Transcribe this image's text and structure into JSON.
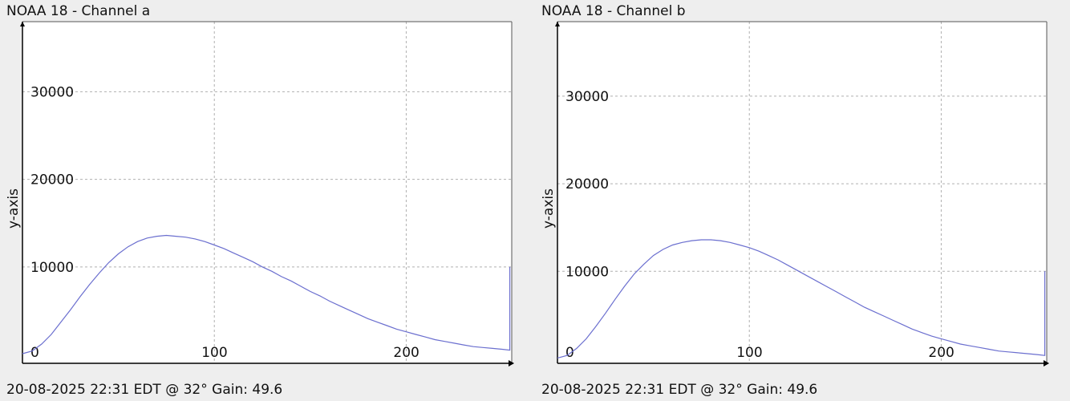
{
  "panels": [
    {
      "title": "NOAA 18 - Channel a",
      "footer": "20-08-2025 22:31 EDT @ 32° Gain: 49.6"
    },
    {
      "title": "NOAA 18 - Channel b",
      "footer": "20-08-2025 22:31 EDT @ 32° Gain: 49.6"
    }
  ],
  "chart_data": [
    {
      "type": "line",
      "title": "NOAA 18 - Channel a",
      "xlabel": "",
      "ylabel": "y-axis",
      "xlim": [
        0,
        255
      ],
      "ylim": [
        -1000,
        38000
      ],
      "xticks": [
        0,
        100,
        200
      ],
      "yticks": [
        10000,
        20000,
        30000
      ],
      "xtick_labels": [
        "0",
        "100",
        "200"
      ],
      "ytick_labels": [
        "10000",
        "20000",
        "30000"
      ],
      "grid": true,
      "line_color": "#6b6fcf",
      "x": [
        0,
        5,
        10,
        15,
        20,
        25,
        30,
        35,
        40,
        45,
        50,
        55,
        60,
        65,
        70,
        75,
        80,
        85,
        90,
        95,
        100,
        105,
        110,
        115,
        120,
        125,
        130,
        135,
        140,
        145,
        150,
        155,
        160,
        165,
        170,
        175,
        180,
        185,
        190,
        195,
        200,
        205,
        210,
        215,
        220,
        225,
        230,
        235,
        240,
        245,
        250,
        254,
        254,
        254
      ],
      "y": [
        100,
        400,
        1200,
        2300,
        3700,
        5100,
        6600,
        8000,
        9300,
        10500,
        11500,
        12300,
        12900,
        13300,
        13500,
        13600,
        13500,
        13400,
        13200,
        12900,
        12500,
        12100,
        11600,
        11100,
        10600,
        10000,
        9500,
        8900,
        8400,
        7800,
        7200,
        6700,
        6100,
        5600,
        5100,
        4600,
        4100,
        3700,
        3300,
        2900,
        2600,
        2300,
        2000,
        1700,
        1500,
        1300,
        1100,
        900,
        800,
        700,
        600,
        500,
        10000,
        500
      ]
    },
    {
      "type": "line",
      "title": "NOAA 18 - Channel b",
      "xlabel": "",
      "ylabel": "y-axis",
      "xlim": [
        0,
        255
      ],
      "ylim": [
        -500,
        38500
      ],
      "xticks": [
        0,
        100,
        200
      ],
      "yticks": [
        10000,
        20000,
        30000
      ],
      "xtick_labels": [
        "0",
        "100",
        "200"
      ],
      "ytick_labels": [
        "10000",
        "20000",
        "30000"
      ],
      "grid": true,
      "line_color": "#6b6fcf",
      "x": [
        0,
        5,
        10,
        15,
        20,
        25,
        30,
        35,
        40,
        45,
        50,
        55,
        60,
        65,
        70,
        75,
        80,
        85,
        90,
        95,
        100,
        105,
        110,
        115,
        120,
        125,
        130,
        135,
        140,
        145,
        150,
        155,
        160,
        165,
        170,
        175,
        180,
        185,
        190,
        195,
        200,
        205,
        210,
        215,
        220,
        225,
        230,
        235,
        240,
        245,
        250,
        254,
        254,
        254
      ],
      "y": [
        100,
        400,
        1200,
        2300,
        3700,
        5200,
        6800,
        8300,
        9700,
        10800,
        11800,
        12500,
        13000,
        13300,
        13500,
        13600,
        13600,
        13500,
        13300,
        13000,
        12700,
        12300,
        11800,
        11300,
        10700,
        10100,
        9500,
        8900,
        8300,
        7700,
        7100,
        6500,
        5900,
        5400,
        4900,
        4400,
        3900,
        3400,
        3000,
        2600,
        2300,
        2000,
        1700,
        1500,
        1300,
        1100,
        900,
        800,
        700,
        600,
        500,
        400,
        10000,
        400
      ]
    }
  ]
}
